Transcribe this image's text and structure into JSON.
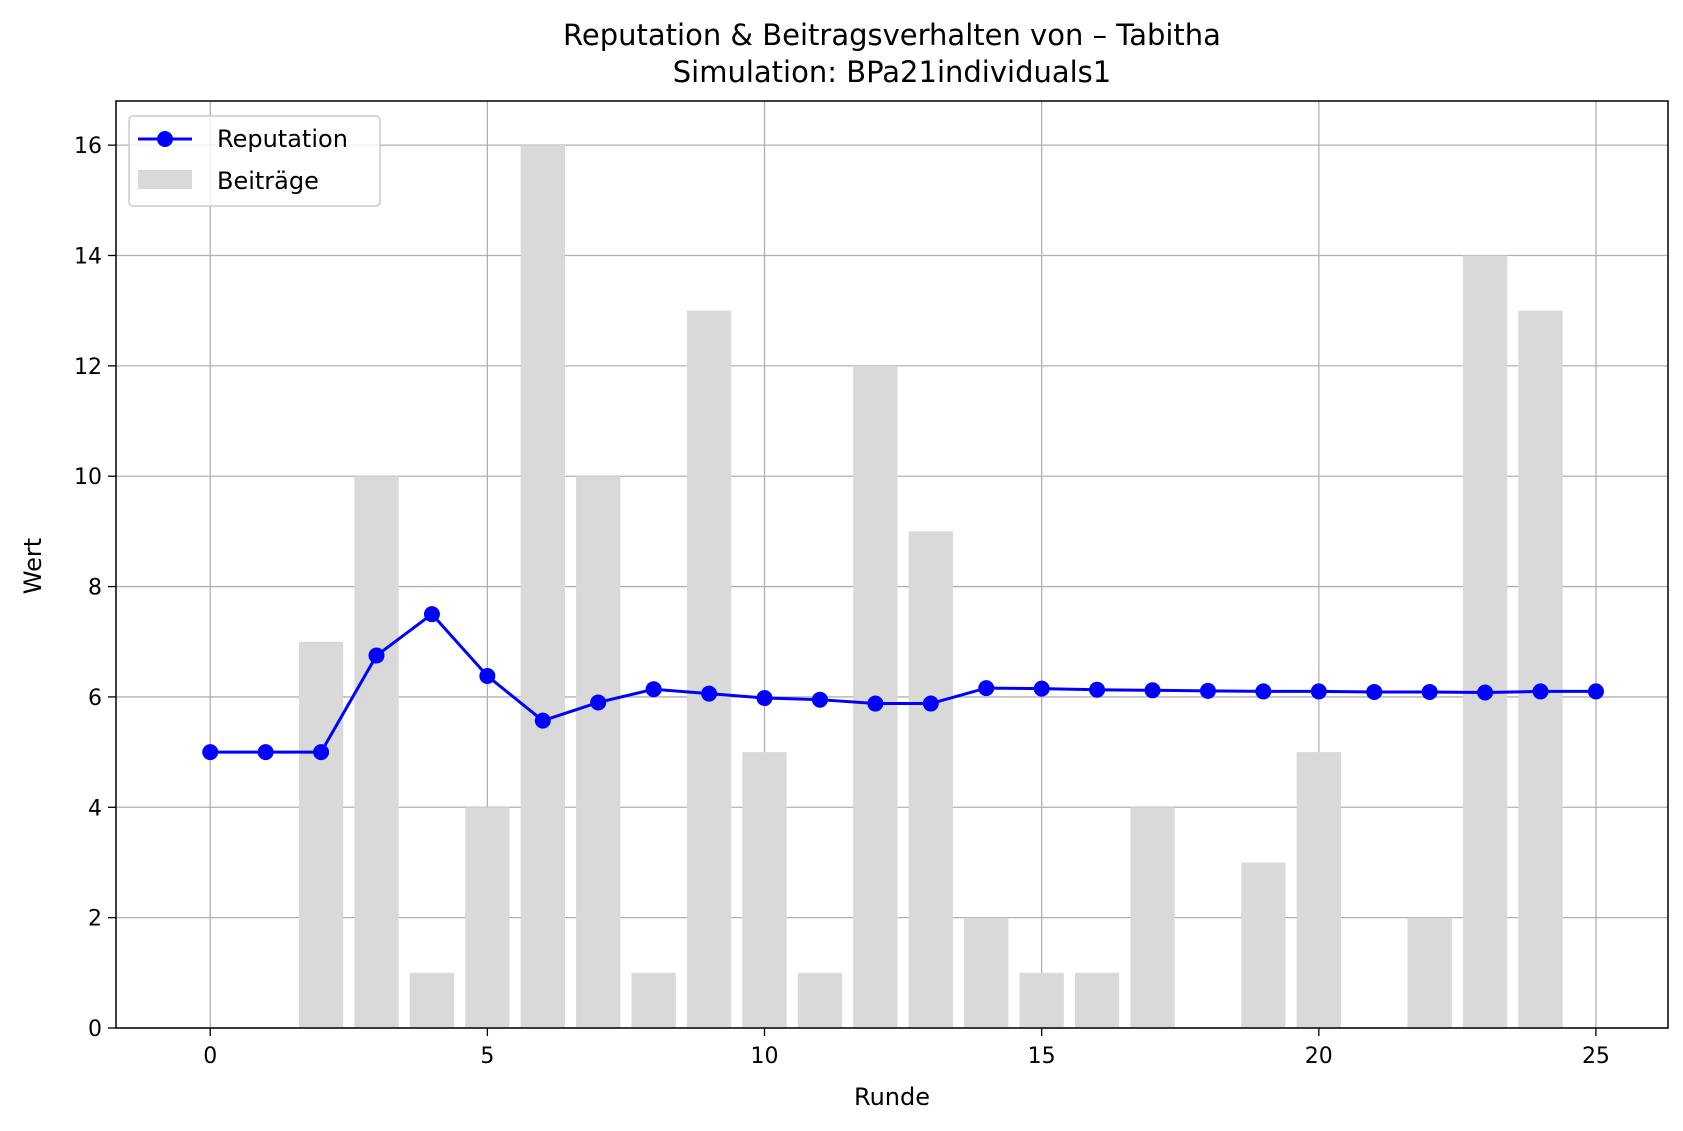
{
  "chart_data": {
    "type": "bar+line",
    "title": "Reputation & Beitragsverhalten von – Tabitha",
    "subtitle": "Simulation: BPa21individuals1",
    "xlabel": "Runde",
    "ylabel": "Wert",
    "xlim": [
      -1.7,
      26.3
    ],
    "ylim": [
      0,
      16.8
    ],
    "x_ticks": [
      0,
      5,
      10,
      15,
      20,
      25
    ],
    "y_ticks": [
      0,
      2,
      4,
      6,
      8,
      10,
      12,
      14,
      16
    ],
    "grid": true,
    "legend_position": "top-left",
    "x": [
      0,
      1,
      2,
      3,
      4,
      5,
      6,
      7,
      8,
      9,
      10,
      11,
      12,
      13,
      14,
      15,
      16,
      17,
      18,
      19,
      20,
      21,
      22,
      23,
      24,
      25
    ],
    "series": [
      {
        "name": "Reputation",
        "kind": "line",
        "color": "#0000ff",
        "values": [
          5.0,
          5.0,
          5.0,
          6.75,
          7.5,
          6.38,
          5.57,
          5.9,
          6.14,
          6.06,
          5.98,
          5.95,
          5.88,
          5.88,
          6.16,
          6.15,
          6.13,
          6.12,
          6.11,
          6.1,
          6.1,
          6.09,
          6.09,
          6.08,
          6.1,
          6.1
        ]
      },
      {
        "name": "Beiträge",
        "kind": "bar",
        "color": "#d9d9d9",
        "values": [
          0,
          0,
          7,
          10,
          1,
          4,
          16,
          10,
          1,
          13,
          5,
          1,
          12,
          9,
          2,
          1,
          1,
          4,
          0,
          3,
          5,
          0,
          2,
          14,
          13,
          0
        ]
      }
    ]
  }
}
